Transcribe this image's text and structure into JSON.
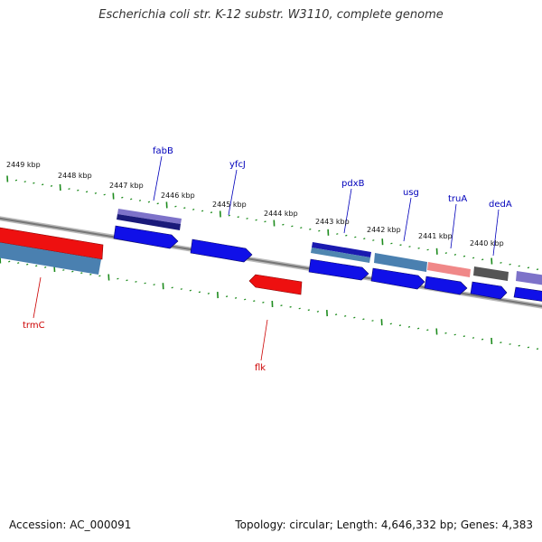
{
  "header": {
    "title": "Escherichia coli str. K-12 substr. W3110, complete genome"
  },
  "footer": {
    "accession": "Accession: AC_000091",
    "summary": "Topology: circular; Length: 4,646,332 bp; Genes: 4,383"
  },
  "colors": {
    "backbone": "#888888",
    "ticks": "#1e8c1e",
    "forward_label": "#0000bb",
    "reverse_label": "#cc0000",
    "forward_gene": "#0000ee",
    "reverse_gene": "#ee0000"
  },
  "scale_labels": [
    "2449 kbp",
    "2448 kbp",
    "2447 kbp",
    "2446 kbp",
    "2445 kbp",
    "2444 kbp",
    "2443 kbp",
    "2442 kbp",
    "2441 kbp",
    "2440 kbp"
  ],
  "forward_gene_labels": [
    "fabB",
    "yfcJ",
    "pdxB",
    "usg",
    "truA",
    "dedA"
  ],
  "reverse_gene_labels": [
    "trmC",
    "flk"
  ]
}
